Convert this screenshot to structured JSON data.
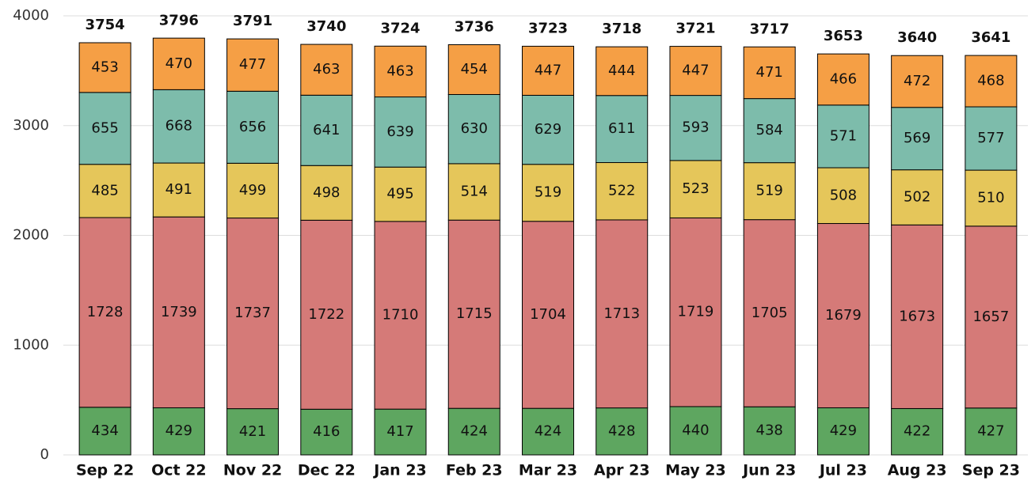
{
  "chart_data": {
    "type": "stacked_bar",
    "categories": [
      "Sep 22",
      "Oct 22",
      "Nov 22",
      "Dec 22",
      "Jan 23",
      "Feb 23",
      "Mar 23",
      "Apr 23",
      "May 23",
      "Jun 23",
      "Jul 23",
      "Aug 23",
      "Sep 23"
    ],
    "series": [
      {
        "color": "#5ea660",
        "values": [
          434,
          429,
          421,
          416,
          417,
          424,
          424,
          428,
          440,
          438,
          429,
          422,
          427
        ]
      },
      {
        "color": "#d57a78",
        "values": [
          1728,
          1739,
          1737,
          1722,
          1710,
          1715,
          1704,
          1713,
          1719,
          1705,
          1679,
          1673,
          1657
        ]
      },
      {
        "color": "#e5c65a",
        "values": [
          485,
          491,
          499,
          498,
          495,
          514,
          519,
          522,
          523,
          519,
          508,
          502,
          510
        ]
      },
      {
        "color": "#7dbcab",
        "values": [
          655,
          668,
          656,
          641,
          639,
          630,
          629,
          611,
          593,
          584,
          571,
          569,
          577
        ]
      },
      {
        "color": "#f59f45",
        "values": [
          453,
          470,
          477,
          463,
          463,
          454,
          447,
          444,
          447,
          471,
          466,
          472,
          468
        ]
      }
    ],
    "totals": [
      3754,
      3796,
      3791,
      3740,
      3724,
      3736,
      3723,
      3718,
      3721,
      3717,
      3653,
      3640,
      3641
    ],
    "ylim": [
      0,
      4000
    ],
    "yticks": [
      0,
      1000,
      2000,
      3000,
      4000
    ],
    "grid": true
  }
}
